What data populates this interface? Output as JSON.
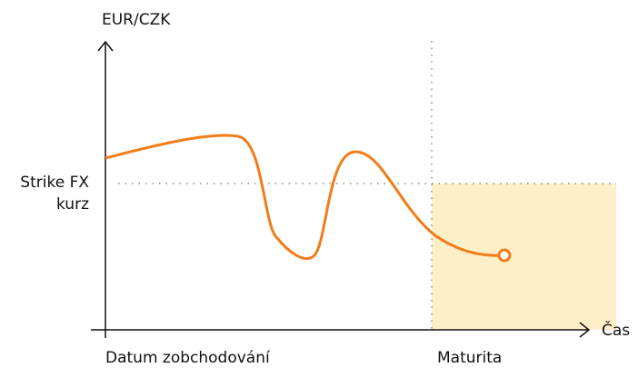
{
  "axes": {
    "y_label": "EUR/CZK",
    "x_label": "Čas"
  },
  "labels": {
    "strike": [
      "Strike FX",
      "kurz"
    ],
    "trade_date": "Datum zobchodování",
    "maturity": "Maturita"
  }
}
